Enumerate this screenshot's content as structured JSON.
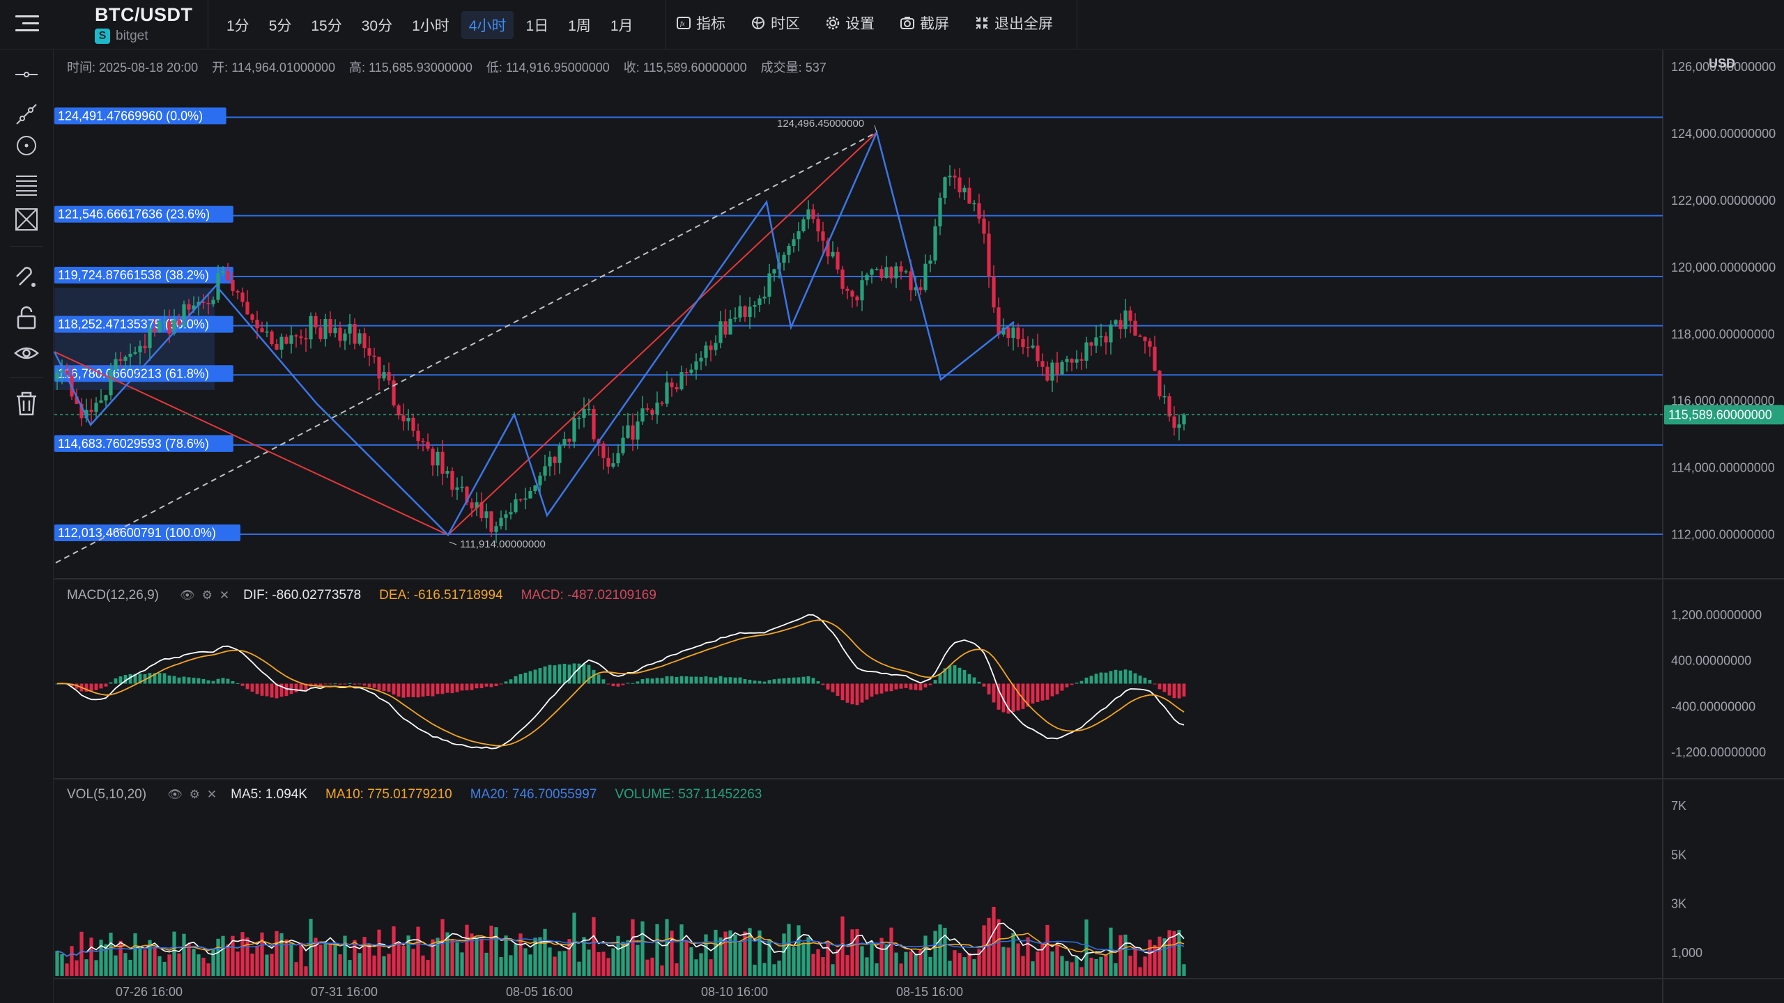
{
  "header": {
    "symbol": "BTC/USDT",
    "exchange": "bitget",
    "intervals": [
      "1分",
      "5分",
      "15分",
      "30分",
      "1小时",
      "4小时",
      "1日",
      "1周",
      "1月"
    ],
    "active_interval": "4小时",
    "tools": [
      {
        "label": "指标",
        "icon": "fx-icon"
      },
      {
        "label": "时区",
        "icon": "globe-icon"
      },
      {
        "label": "设置",
        "icon": "gear-icon"
      },
      {
        "label": "截屏",
        "icon": "camera-icon"
      },
      {
        "label": "退出全屏",
        "icon": "exit-fullscreen-icon"
      }
    ]
  },
  "sidebar": {
    "tools": [
      "horizontal-line-icon",
      "trend-line-icon",
      "circle-tool-icon",
      "parallel-channel-icon",
      "pattern-tool-icon",
      "magnet-icon",
      "lock-icon",
      "eye-icon",
      "trash-icon"
    ]
  },
  "ohlc": {
    "time_label": "时间:",
    "time": "2025-08-18 20:00",
    "open_label": "开:",
    "open": "114,964.01000000",
    "high_label": "高:",
    "high": "115,685.93000000",
    "low_label": "低:",
    "low": "114,916.95000000",
    "close_label": "收:",
    "close": "115,589.60000000",
    "volume_label": "成交量:",
    "volume": "537"
  },
  "price_axis": {
    "currency": "USD",
    "ticks": [
      {
        "value": 126000,
        "label": "126,000.00000000"
      },
      {
        "value": 124000,
        "label": "124,000.00000000"
      },
      {
        "value": 122000,
        "label": "122,000.00000000"
      },
      {
        "value": 120000,
        "label": "120,000.00000000"
      },
      {
        "value": 118000,
        "label": "118,000.00000000"
      },
      {
        "value": 116000,
        "label": "116,000.00000000"
      },
      {
        "value": 114000,
        "label": "114,000.00000000"
      },
      {
        "value": 112000,
        "label": "112,000.00000000"
      }
    ],
    "current_price": 115589.6,
    "current_price_label": "115,589.60000000"
  },
  "fib_levels": [
    {
      "value": 124491.4767,
      "label": "124,491.47669960 (0.0%)"
    },
    {
      "value": 121546.6662,
      "label": "121,546.66617636 (23.6%)"
    },
    {
      "value": 119724.8766,
      "label": "119,724.87661538 (38.2%)"
    },
    {
      "value": 118252.4714,
      "label": "118,252.47135375 (50.0%)"
    },
    {
      "value": 116780.0661,
      "label": "116,780.06609213 (61.8%)"
    },
    {
      "value": 114683.7603,
      "label": "114,683.76029593 (78.6%)"
    },
    {
      "value": 112013.466,
      "label": "112,013.46600791 (100.0%)"
    }
  ],
  "annotations": {
    "high_marker": {
      "value": 124496.45,
      "label": "124,496.45000000"
    },
    "low_marker": {
      "value": 111914.0,
      "label": "111,914.00000000"
    }
  },
  "x_axis": {
    "labels": [
      "07-26 16:00",
      "07-31 16:00",
      "08-05 16:00",
      "08-10 16:00",
      "08-15 16:00"
    ]
  },
  "macd": {
    "name": "MACD(12,26,9)",
    "dif_label": "DIF: -860.02773578",
    "dea_label": "DEA: -616.51718994",
    "macd_label": "MACD: -487.02109169",
    "ticks": [
      {
        "value": 1200,
        "label": "1,200.00000000"
      },
      {
        "value": 400,
        "label": "400.00000000"
      },
      {
        "value": -400,
        "label": "-400.00000000"
      },
      {
        "value": -1200,
        "label": "-1,200.00000000"
      }
    ]
  },
  "vol": {
    "name": "VOL(5,10,20)",
    "ma5_label": "MA5: 1.094K",
    "ma10_label": "MA10: 775.01779210",
    "ma20_label": "MA20: 746.70055997",
    "volume_label": "VOLUME: 537.11452263",
    "ticks": [
      {
        "value": 7000,
        "label": "7K"
      },
      {
        "value": 5000,
        "label": "5K"
      },
      {
        "value": 3000,
        "label": "3K"
      },
      {
        "value": 1000,
        "label": "1,000"
      }
    ]
  },
  "colors": {
    "up": "#26a17b",
    "down": "#e0294a",
    "fib": "#2f6de1",
    "dif": "#ffffff",
    "dea": "#f5a623",
    "macd": "#d0485e",
    "ma5": "#ffffff",
    "ma10": "#f5a623",
    "ma20": "#2f6de1"
  },
  "chart_data": {
    "type": "candlestick",
    "series_anchors": [
      [
        0,
        117200
      ],
      [
        6,
        115400
      ],
      [
        14,
        117500
      ],
      [
        24,
        118400
      ],
      [
        34,
        119600
      ],
      [
        44,
        117800
      ],
      [
        52,
        118200
      ],
      [
        62,
        117900
      ],
      [
        72,
        115400
      ],
      [
        82,
        113300
      ],
      [
        90,
        112050
      ],
      [
        100,
        114000
      ],
      [
        108,
        115800
      ],
      [
        113,
        114100
      ],
      [
        119,
        115400
      ],
      [
        128,
        116800
      ],
      [
        137,
        118200
      ],
      [
        146,
        119500
      ],
      [
        154,
        121800
      ],
      [
        159,
        120300
      ],
      [
        163,
        119100
      ],
      [
        170,
        120000
      ],
      [
        177,
        119200
      ],
      [
        183,
        123000
      ],
      [
        189,
        121700
      ],
      [
        193,
        118100
      ],
      [
        197,
        117800
      ],
      [
        203,
        116900
      ],
      [
        210,
        117400
      ],
      [
        216,
        118200
      ],
      [
        220,
        118600
      ],
      [
        224,
        117300
      ],
      [
        229,
        115200
      ],
      [
        231,
        115589.6
      ]
    ],
    "price_range": [
      110700,
      126500
    ],
    "candle_count": 232
  }
}
